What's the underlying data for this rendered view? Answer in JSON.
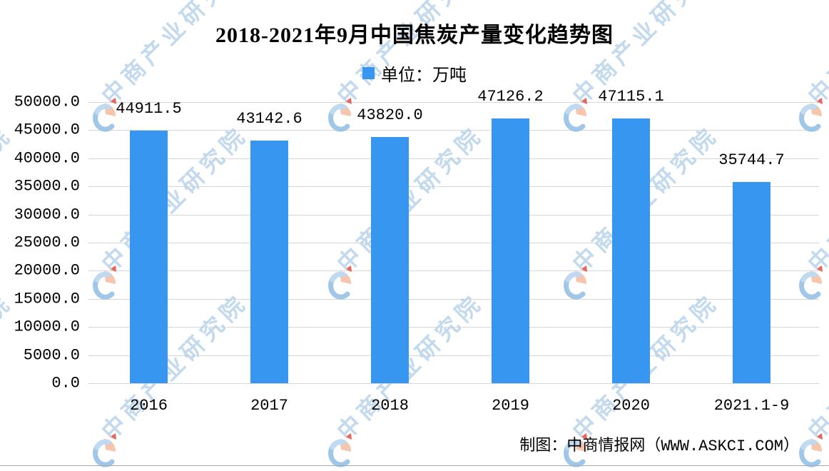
{
  "title": "2018-2021年9月中国焦炭产量变化趋势图",
  "legend": {
    "label": "单位：万吨"
  },
  "footer": "制图：中商情报网（WWW.ASKCI.COM）",
  "watermark": {
    "text": "中商产业研究院"
  },
  "colors": {
    "bar": "#3797F0",
    "grid": "#D6D6D6",
    "watermark_text": "#B4D0EA",
    "logo_blue": "#8FBCE4",
    "logo_blue_light": "#C3DCF2",
    "logo_peach": "#F6C2A6",
    "logo_red": "#E2574B",
    "text": "#000000"
  },
  "chart_data": {
    "type": "bar",
    "title": "2018-2021年9月中国焦炭产量变化趋势图",
    "unit": "万吨",
    "categories": [
      "2016",
      "2017",
      "2018",
      "2019",
      "2020",
      "2021.1-9"
    ],
    "values": [
      44911.5,
      43142.6,
      43820.0,
      47126.2,
      47115.1,
      35744.7
    ],
    "value_labels": [
      "44911.5",
      "43142.6",
      "43820.0",
      "47126.2",
      "47115.1",
      "35744.7"
    ],
    "ylim": [
      0,
      50000
    ],
    "ytick_step": 5000,
    "ytick_labels": [
      "50000.0",
      "45000.0",
      "40000.0",
      "35000.0",
      "30000.0",
      "25000.0",
      "20000.0",
      "15000.0",
      "10000.0",
      "5000.0",
      "0.0"
    ],
    "grid": true,
    "legend_position": "top-center",
    "xlabel": "",
    "ylabel": ""
  }
}
